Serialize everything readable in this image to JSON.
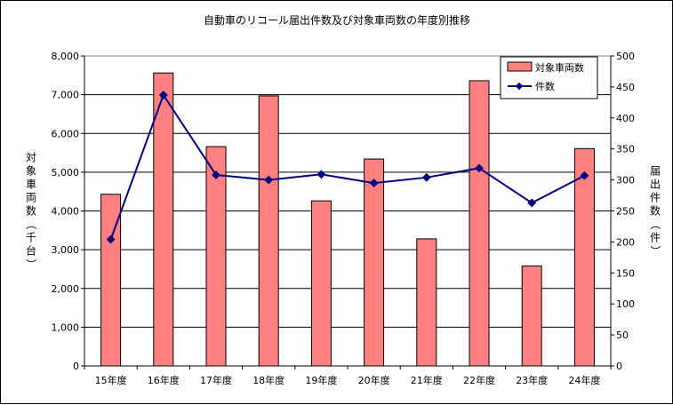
{
  "chart_data": {
    "type": "bar+line",
    "title": "自動車のリコール届出件数及び対象車両数の年度別推移",
    "categories": [
      "15年度",
      "16年度",
      "17年度",
      "18年度",
      "19年度",
      "20年度",
      "21年度",
      "22年度",
      "23年度",
      "24年度"
    ],
    "series": [
      {
        "name": "対象車両数",
        "type": "bar",
        "axis": "left",
        "color": "#ff8080",
        "values": [
          4430,
          7560,
          5660,
          6970,
          4260,
          5340,
          3280,
          7360,
          2580,
          5610
        ]
      },
      {
        "name": "件数",
        "type": "line",
        "axis": "right",
        "color": "#000080",
        "values": [
          204,
          437,
          308,
          300,
          309,
          295,
          304,
          319,
          263,
          307
        ]
      }
    ],
    "y_left": {
      "label": "対象車両数（千台）",
      "ylim": [
        0,
        8000
      ],
      "ticks": [
        "0",
        "1,000",
        "2,000",
        "3,000",
        "4,000",
        "5,000",
        "6,000",
        "7,000",
        "8,000"
      ]
    },
    "y_right": {
      "label": "届出件数（件）",
      "ylim": [
        0,
        500
      ],
      "ticks": [
        "0",
        "50",
        "100",
        "150",
        "200",
        "250",
        "300",
        "350",
        "400",
        "450",
        "500"
      ]
    },
    "grid": true,
    "legend": "top-right"
  }
}
